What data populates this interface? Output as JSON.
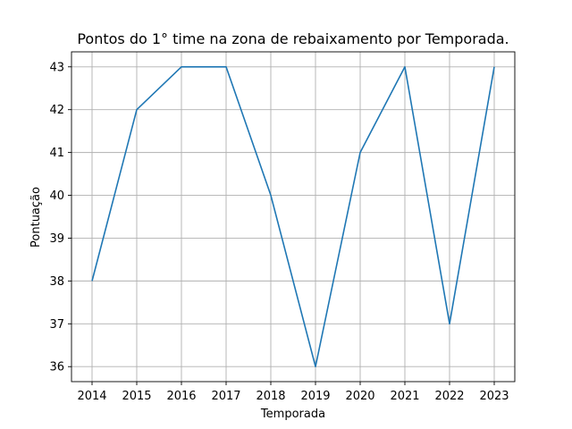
{
  "chart_data": {
    "type": "line",
    "title": "Pontos do 1° time na zona de rebaixamento por Temporada.",
    "xlabel": "Temporada",
    "ylabel": "Pontuação",
    "x": [
      "2014",
      "2015",
      "2016",
      "2017",
      "2018",
      "2019",
      "2020",
      "2021",
      "2022",
      "2023"
    ],
    "series": [
      {
        "values": [
          38,
          42,
          43,
          43,
          40,
          36,
          41,
          43,
          37,
          43
        ]
      }
    ],
    "yticks": [
      36,
      37,
      38,
      39,
      40,
      41,
      42,
      43
    ],
    "ylim": [
      35.65,
      43.35
    ],
    "grid": true,
    "color": "#1f77b4"
  }
}
